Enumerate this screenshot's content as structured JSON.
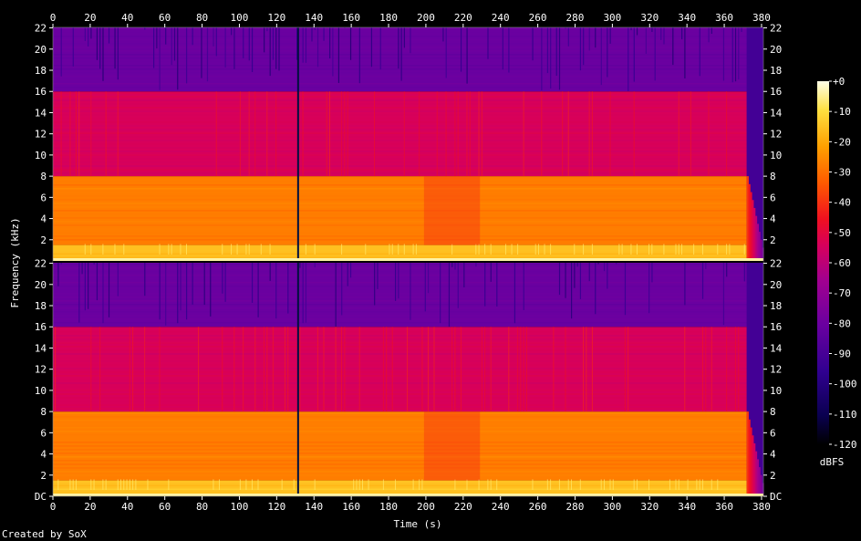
{
  "chart_data": {
    "type": "heatmap",
    "title": "",
    "xlabel": "Time (s)",
    "ylabel": "Frequency (kHz)",
    "colorbar_label": "dBFS",
    "xlim": [
      0,
      381
    ],
    "ylim": [
      0,
      22.05
    ],
    "x_ticks": [
      "0",
      "20",
      "40",
      "60",
      "80",
      "100",
      "120",
      "140",
      "160",
      "180",
      "200",
      "220",
      "240",
      "260",
      "280",
      "300",
      "320",
      "340",
      "360",
      "380"
    ],
    "x_tick_values": [
      0,
      20,
      40,
      60,
      80,
      100,
      120,
      140,
      160,
      180,
      200,
      220,
      240,
      260,
      280,
      300,
      320,
      340,
      360,
      380
    ],
    "y_ticks_top": [
      "2",
      "4",
      "6",
      "8",
      "10",
      "12",
      "14",
      "16",
      "18",
      "20",
      "22"
    ],
    "y_ticks_bottom": [
      "DC",
      "2",
      "4",
      "6",
      "8",
      "10",
      "12",
      "14",
      "16",
      "18",
      "20",
      "22"
    ],
    "y_tick_values": [
      0,
      2,
      4,
      6,
      8,
      10,
      12,
      14,
      16,
      18,
      20,
      22
    ],
    "colorbar_ticks": [
      "+0",
      "-10",
      "-20",
      "-30",
      "-40",
      "-50",
      "-60",
      "-70",
      "-80",
      "-90",
      "-100",
      "-110",
      "-120"
    ],
    "colorbar_values": [
      0,
      -10,
      -20,
      -30,
      -40,
      -50,
      -60,
      -70,
      -80,
      -90,
      -100,
      -110,
      -120
    ],
    "channels": [
      {
        "bands": [
          {
            "from": 0,
            "to": 1.5,
            "level": -25
          },
          {
            "from": 1.5,
            "to": 8,
            "level": -35
          },
          {
            "from": 8,
            "to": 16,
            "level": -60
          },
          {
            "from": 16,
            "to": 22.05,
            "level": -85
          }
        ]
      },
      {
        "bands": [
          {
            "from": 0,
            "to": 1.5,
            "level": -25
          },
          {
            "from": 1.5,
            "to": 8,
            "level": -35
          },
          {
            "from": 8,
            "to": 16,
            "level": -60
          },
          {
            "from": 16,
            "to": 22.05,
            "level": -85
          }
        ]
      }
    ],
    "events": [
      {
        "time": 131,
        "description": "silent gap"
      },
      {
        "from": 199,
        "to": 229,
        "level": -48
      }
    ],
    "fade_out_start": 372
  },
  "footer": {
    "credit": "Created by SoX"
  }
}
